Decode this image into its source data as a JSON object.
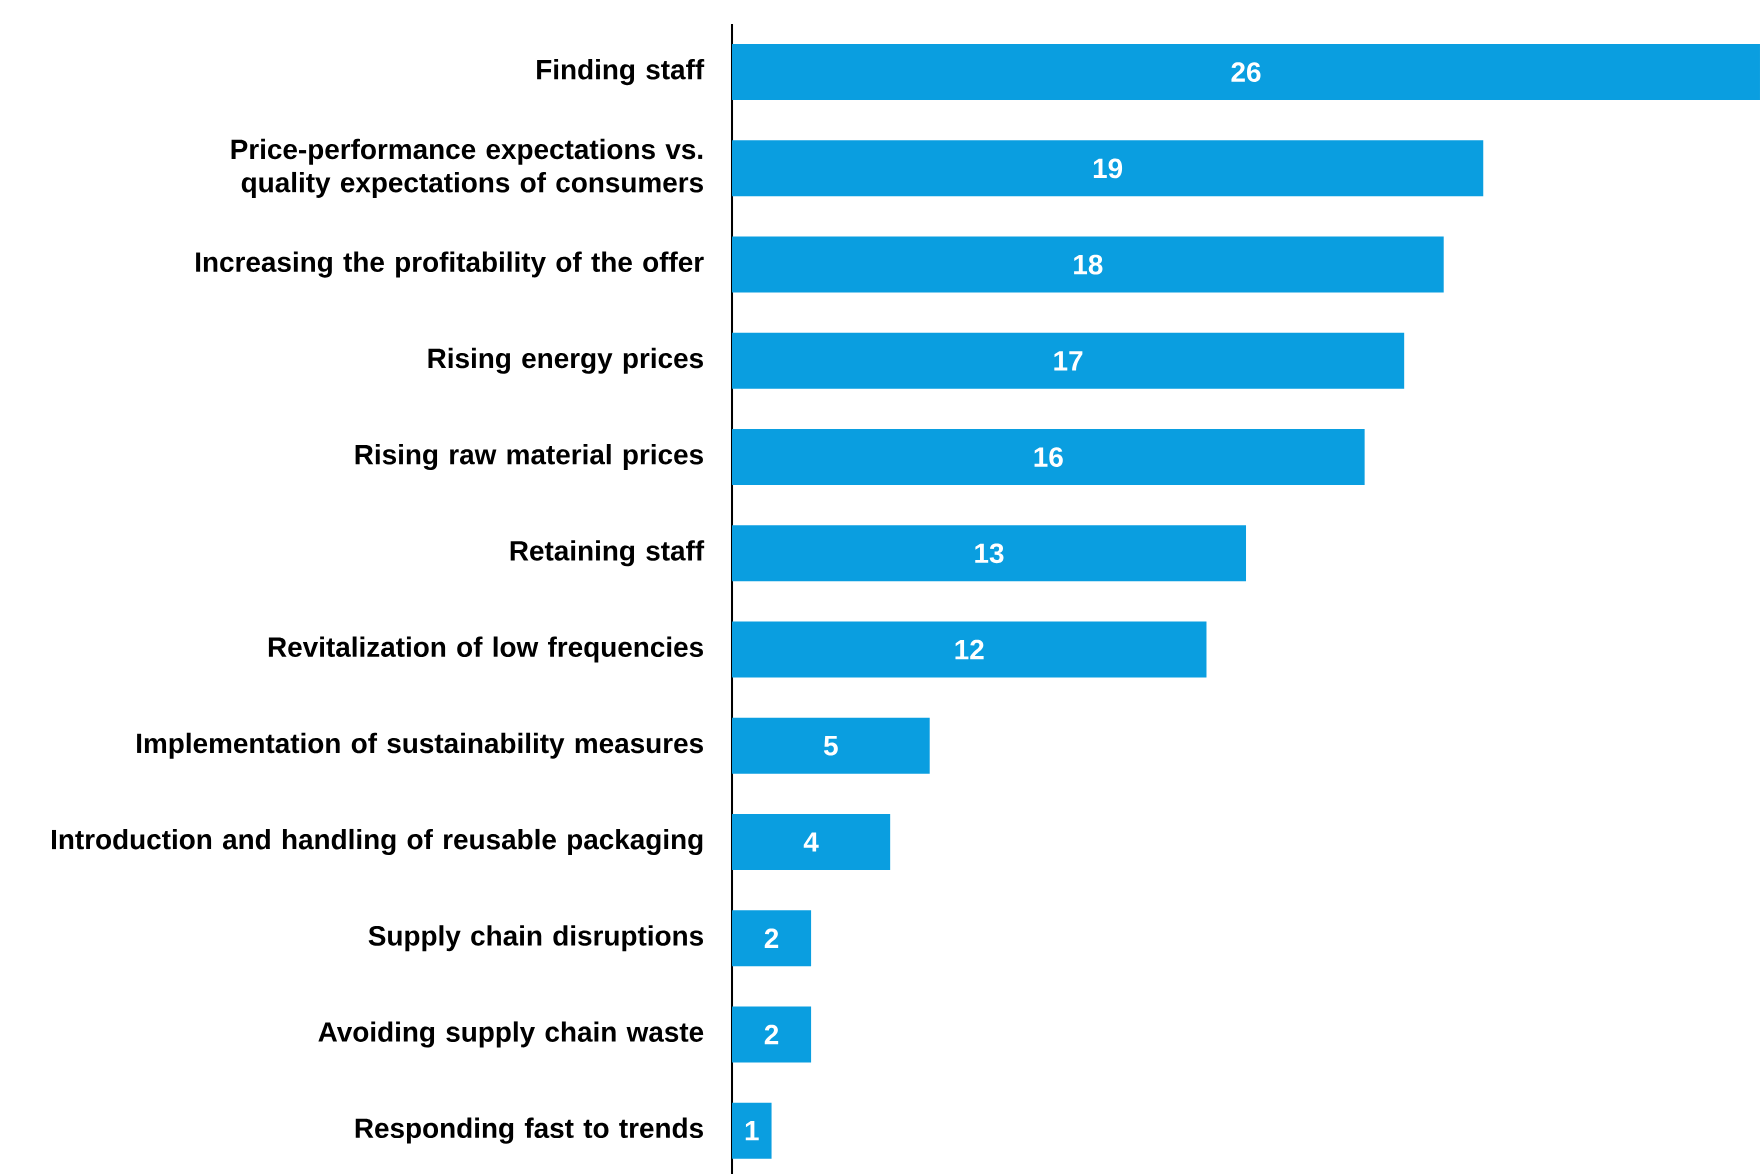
{
  "chart_data": {
    "type": "bar",
    "orientation": "horizontal",
    "categories": [
      "Finding staff",
      "Price-performance expectations vs. quality expectations of consumers",
      "Increasing the profitability of the offer",
      "Rising energy prices",
      "Rising raw material prices",
      "Retaining staff",
      "Revitalization of low frequencies",
      "Implementation of sustainability measures",
      "Introduction and handling of reusable packaging",
      "Supply chain disruptions",
      "Avoiding supply chain waste",
      "Responding fast to trends"
    ],
    "values": [
      26,
      19,
      18,
      17,
      16,
      13,
      12,
      5,
      4,
      2,
      2,
      1
    ],
    "color": "#0a9ee0",
    "data_labels": true
  }
}
